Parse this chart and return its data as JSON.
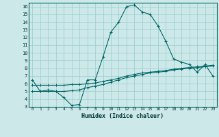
{
  "xlabel": "Humidex (Indice chaleur)",
  "bg_color": "#cce8e8",
  "line_color": "#006666",
  "grid_color": "#99cccc",
  "xlim": [
    -0.5,
    23.5
  ],
  "ylim": [
    3,
    16.5
  ],
  "xticks": [
    0,
    1,
    2,
    3,
    4,
    5,
    6,
    7,
    8,
    9,
    10,
    11,
    12,
    13,
    14,
    15,
    16,
    17,
    18,
    19,
    20,
    21,
    22,
    23
  ],
  "yticks": [
    3,
    4,
    5,
    6,
    7,
    8,
    9,
    10,
    11,
    12,
    13,
    14,
    15,
    16
  ],
  "curve1_x": [
    0,
    1,
    2,
    3,
    4,
    5,
    6,
    7,
    8,
    9,
    10,
    11,
    12,
    13,
    14,
    15,
    16,
    17,
    18,
    19,
    20,
    21,
    22,
    23
  ],
  "curve1_y": [
    6.5,
    5.0,
    5.2,
    5.0,
    4.2,
    3.2,
    3.3,
    6.5,
    6.5,
    9.5,
    12.7,
    14.0,
    16.0,
    16.2,
    15.3,
    15.0,
    13.5,
    11.5,
    9.2,
    8.8,
    8.5,
    7.5,
    8.5,
    7.0
  ],
  "curve2_x": [
    0,
    1,
    2,
    3,
    4,
    5,
    6,
    7,
    8,
    9,
    10,
    11,
    12,
    13,
    14,
    15,
    16,
    17,
    18,
    19,
    20,
    21,
    22,
    23
  ],
  "curve2_y": [
    5.8,
    5.8,
    5.8,
    5.8,
    5.8,
    5.9,
    5.9,
    6.0,
    6.1,
    6.3,
    6.5,
    6.7,
    7.0,
    7.2,
    7.4,
    7.5,
    7.6,
    7.7,
    7.9,
    8.0,
    8.1,
    8.2,
    8.3,
    8.4
  ],
  "curve3_x": [
    0,
    1,
    2,
    3,
    4,
    5,
    6,
    7,
    8,
    9,
    10,
    11,
    12,
    13,
    14,
    15,
    16,
    17,
    18,
    19,
    20,
    21,
    22,
    23
  ],
  "curve3_y": [
    5.0,
    5.0,
    5.0,
    5.0,
    5.0,
    5.1,
    5.2,
    5.5,
    5.7,
    5.9,
    6.2,
    6.5,
    6.8,
    7.0,
    7.2,
    7.4,
    7.5,
    7.6,
    7.8,
    7.9,
    8.0,
    8.1,
    8.2,
    8.3
  ]
}
